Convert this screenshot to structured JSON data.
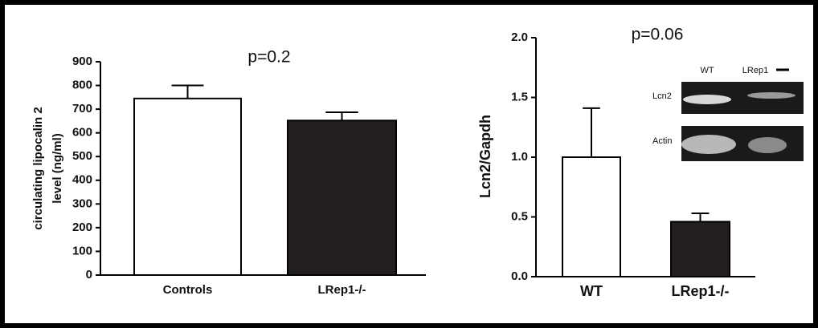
{
  "chart_data": [
    {
      "type": "bar",
      "annotation": "p=0.2",
      "ylabel": [
        "circulating lipocalin 2",
        "level (ng/ml)"
      ],
      "categories": [
        "Controls",
        "LRep1-/-"
      ],
      "values": [
        745,
        652
      ],
      "errors": [
        55,
        35
      ],
      "colors": [
        "#ffffff",
        "#231f20"
      ],
      "ylim": [
        0,
        900
      ],
      "yticks": [
        0,
        100,
        200,
        300,
        400,
        500,
        600,
        700,
        800,
        900
      ]
    },
    {
      "type": "bar",
      "annotation": "p=0.06",
      "ylabel": [
        "Lcn2/Gapdh"
      ],
      "categories": [
        "WT",
        "LRep1-/-"
      ],
      "values": [
        1.0,
        0.46
      ],
      "errors": [
        0.41,
        0.07
      ],
      "colors": [
        "#ffffff",
        "#231f20"
      ],
      "ylim": [
        0,
        2.0
      ],
      "yticks": [
        {
          "value": 0,
          "label": "0.0"
        },
        {
          "value": 0.5,
          "label": "0.5"
        },
        {
          "value": 1,
          "label": "1.0"
        },
        {
          "value": 1.5,
          "label": "1.5"
        },
        {
          "value": 2,
          "label": "2.0"
        }
      ]
    }
  ],
  "blot": {
    "lanes": [
      "WT",
      "LRep1"
    ],
    "bands": [
      "Lcn2",
      "Actin"
    ]
  }
}
